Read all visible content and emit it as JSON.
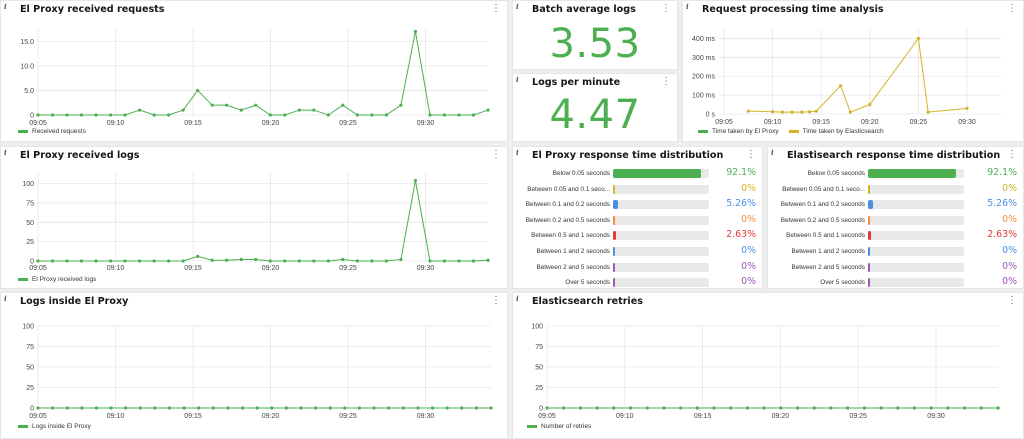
{
  "colors": {
    "green": "#4caf50",
    "yellow": "#d4b425",
    "blue": "#4a90e2",
    "orange": "#f28b3b",
    "red": "#e53935",
    "purple": "#9b59b6",
    "grid": "#e6e6e6"
  },
  "time_ticks": [
    "09:05",
    "09:10",
    "09:15",
    "09:20",
    "09:25",
    "09:30"
  ],
  "panels": {
    "received_requests": {
      "title": "El Proxy received requests",
      "legend": "Received requests",
      "yticks": [
        "0",
        "5.0",
        "10.0",
        "15.0"
      ]
    },
    "batch_avg": {
      "title": "Batch average logs",
      "value": "3.53"
    },
    "logs_per_minute": {
      "title": "Logs per minute",
      "value": "4.47"
    },
    "processing_time": {
      "title": "Request processing time analysis",
      "yticks": [
        "0 s",
        "100 ms",
        "200 ms",
        "300 ms",
        "400 ms"
      ],
      "legend": [
        "Time taken by El Proxy",
        "Time taken by Elasticsearch"
      ]
    },
    "received_logs": {
      "title": "El Proxy received logs",
      "legend": "El Proxy received logs",
      "yticks": [
        "0",
        "25",
        "50",
        "75",
        "100"
      ]
    },
    "proxy_dist": {
      "title": "El Proxy response time distribution"
    },
    "es_dist": {
      "title": "Elastisearch response time distribution"
    },
    "logs_inside": {
      "title": "Logs inside El Proxy",
      "legend": "Logs inside El Proxy",
      "yticks": [
        "0",
        "25",
        "50",
        "75",
        "100"
      ]
    },
    "es_retries": {
      "title": "Elasticsearch retries",
      "legend": "Number of retries",
      "yticks": [
        "0",
        "25",
        "50",
        "75",
        "100"
      ]
    }
  },
  "distribution": [
    {
      "label": "Below 0.05 seconds",
      "value": "92.1%",
      "pct": 92.1,
      "color": "#4caf50"
    },
    {
      "label": "Between 0.05 and 0.1 seco...",
      "value": "0%",
      "pct": 0,
      "color": "#d4b425"
    },
    {
      "label": "Between 0.1 and 0.2 seconds",
      "value": "5.26%",
      "pct": 5.26,
      "color": "#4a90e2"
    },
    {
      "label": "Between 0.2 and 0.5 seconds",
      "value": "0%",
      "pct": 0,
      "color": "#f28b3b"
    },
    {
      "label": "Between 0.5 and 1 seconds",
      "value": "2.63%",
      "pct": 2.63,
      "color": "#e53935"
    },
    {
      "label": "Between 1 and 2 seconds",
      "value": "0%",
      "pct": 0,
      "color": "#4a90e2"
    },
    {
      "label": "Between 2 and 5 seconds",
      "value": "0%",
      "pct": 0,
      "color": "#9b59b6"
    },
    {
      "label": "Over 5 seconds",
      "value": "0%",
      "pct": 0,
      "color": "#9b59b6"
    }
  ],
  "chart_data": [
    {
      "type": "line",
      "series": [
        {
          "name": "Received requests",
          "values": [
            0,
            0,
            0,
            0,
            0,
            0,
            0,
            1,
            0,
            0,
            1,
            5,
            2,
            2,
            1,
            2,
            0,
            0,
            1,
            1,
            0,
            2,
            0,
            0,
            0,
            2,
            17,
            0,
            0,
            0,
            0,
            1
          ]
        }
      ],
      "ylim": [
        0,
        17.5
      ]
    },
    {
      "type": "line",
      "series": [
        {
          "name": "El Proxy received logs",
          "values": [
            0,
            0,
            0,
            0,
            0,
            0,
            0,
            0,
            0,
            0,
            0,
            6,
            1,
            1,
            2,
            2,
            0,
            0,
            0,
            0,
            0,
            2,
            0,
            0,
            0,
            2,
            104,
            0,
            0,
            0,
            0,
            1
          ]
        }
      ],
      "ylim": [
        0,
        115
      ]
    },
    {
      "type": "line",
      "series": [
        {
          "name": "Time taken by El Proxy",
          "values": []
        },
        {
          "name": "Time taken by Elasticsearch",
          "values": [
            15,
            12,
            10,
            10,
            10,
            12,
            15,
            150,
            10,
            50,
            400,
            10,
            30
          ],
          "x_minutes": [
            2.5,
            5.0,
            6.0,
            7.0,
            8.0,
            8.8,
            9.5,
            12.0,
            13.0,
            15.0,
            20.0,
            21.0,
            25.0
          ]
        }
      ],
      "ylim": [
        0,
        450
      ]
    },
    {
      "type": "line",
      "series": [
        {
          "name": "Logs inside El Proxy",
          "values": [
            0,
            0,
            0,
            0,
            0,
            0,
            0,
            0,
            0,
            0,
            0,
            0,
            0,
            0,
            0,
            0,
            0,
            0,
            0,
            0,
            0,
            0,
            0,
            0,
            0,
            0,
            0,
            0,
            0,
            0,
            0,
            0
          ]
        }
      ],
      "ylim": [
        0,
        100
      ]
    },
    {
      "type": "line",
      "series": [
        {
          "name": "Number of retries",
          "values": [
            0,
            0,
            0,
            0,
            0,
            0,
            0,
            0,
            0,
            0,
            0,
            0,
            0,
            0,
            0,
            0,
            0,
            0,
            0,
            0,
            0,
            0,
            0,
            0,
            0,
            0,
            0,
            0
          ]
        }
      ],
      "ylim": [
        0,
        100
      ]
    }
  ]
}
